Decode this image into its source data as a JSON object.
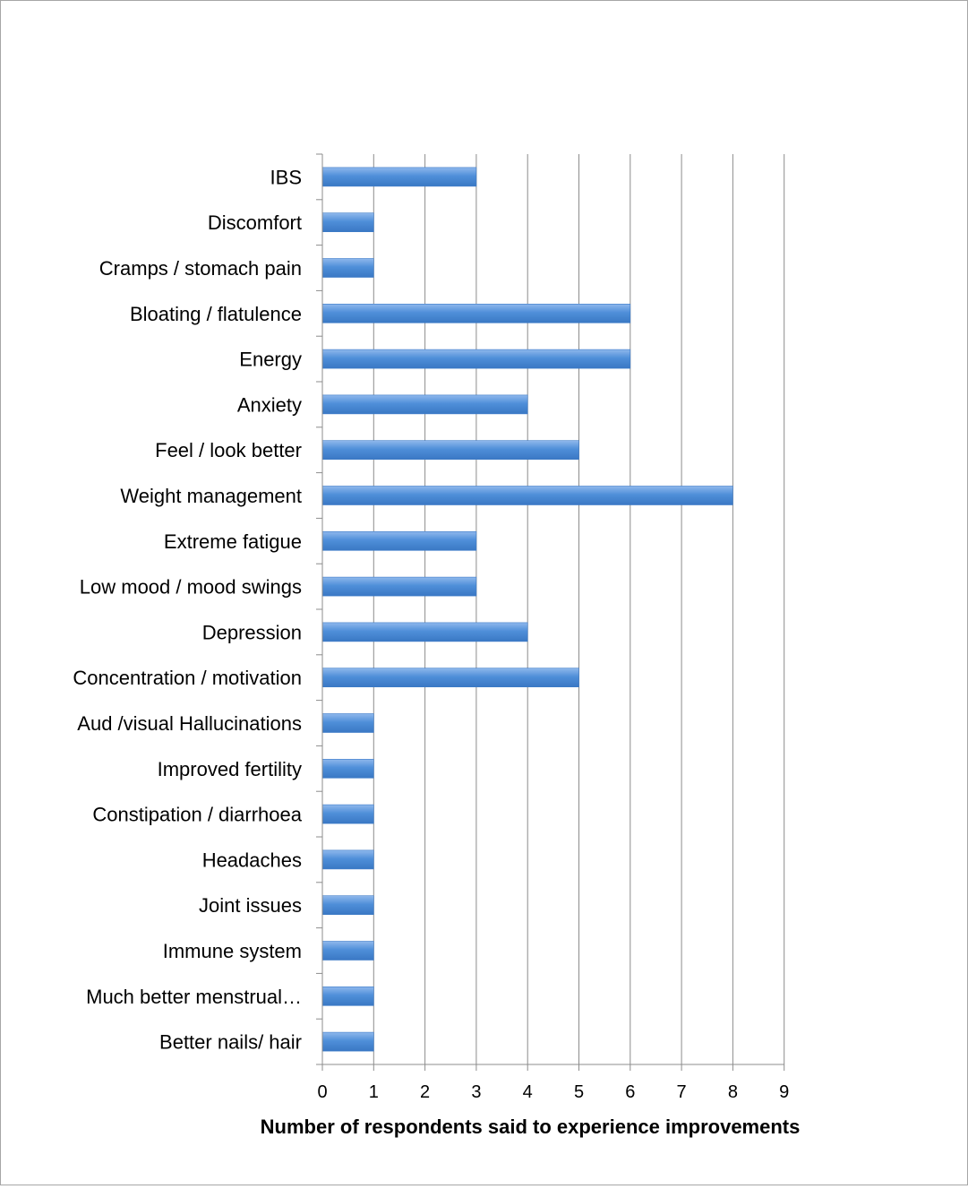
{
  "chart_data": {
    "type": "bar",
    "orientation": "horizontal",
    "title": "",
    "xlabel": "Number of respondents said to experience improvements",
    "ylabel": "",
    "xlim": [
      0,
      9
    ],
    "xticks": [
      "0",
      "1",
      "2",
      "3",
      "4",
      "5",
      "6",
      "7",
      "8",
      "9"
    ],
    "grid": true,
    "bar_color": "#4f8fd9",
    "categories": [
      "IBS",
      "Discomfort",
      "Cramps / stomach pain",
      "Bloating / flatulence",
      "Energy",
      "Anxiety",
      "Feel / look better",
      "Weight management",
      "Extreme fatigue",
      "Low mood / mood swings",
      "Depression",
      "Concentration / motivation",
      "Aud /visual Hallucinations",
      "Improved fertility",
      "Constipation / diarrhoea",
      "Headaches",
      "Joint issues",
      "Immune system",
      "Much better menstrual…",
      "Better nails/ hair"
    ],
    "values": [
      3,
      1,
      1,
      6,
      6,
      4,
      5,
      8,
      3,
      3,
      4,
      5,
      1,
      1,
      1,
      1,
      1,
      1,
      1,
      1
    ]
  }
}
